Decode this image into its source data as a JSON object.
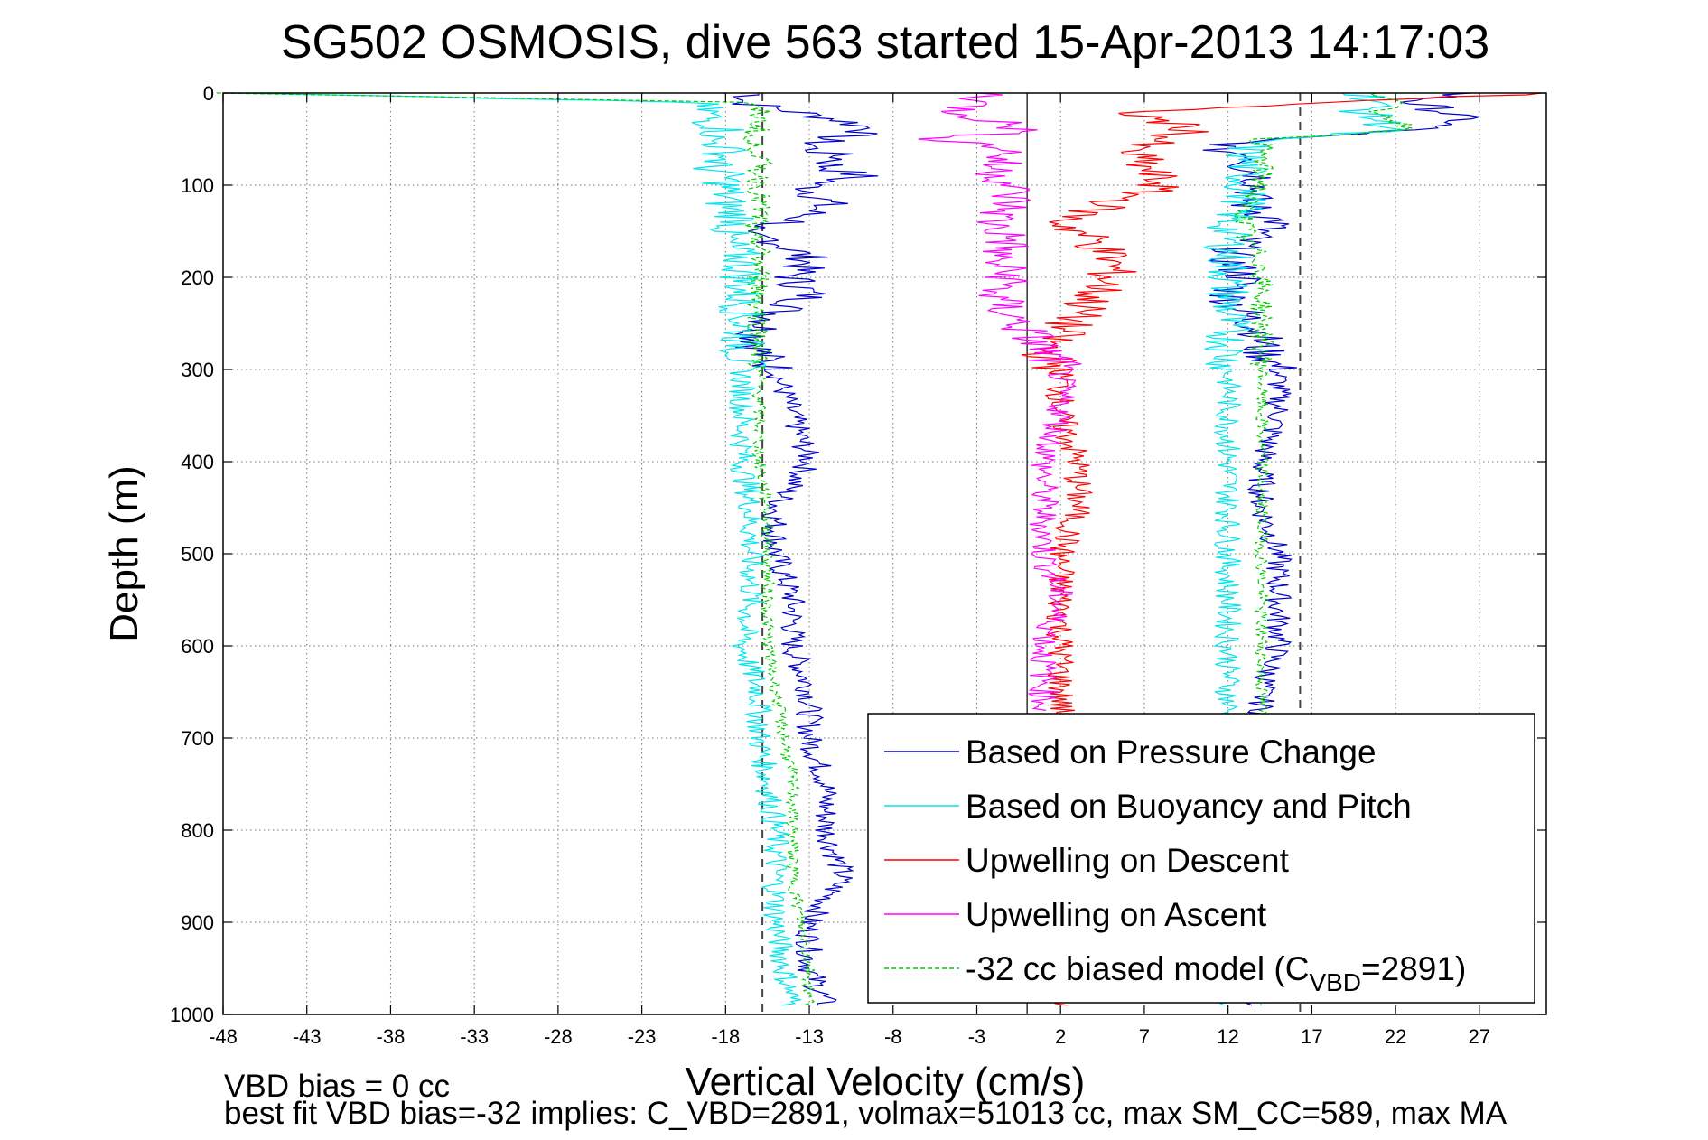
{
  "chart_data": {
    "type": "line",
    "title": "SG502 OSMOSIS, dive 563 started 15-Apr-2013 14:17:03",
    "xlabel": "Vertical Velocity (cm/s)",
    "ylabel": "Depth (m)",
    "xlim": [
      -48,
      31
    ],
    "ylim": [
      0,
      1000
    ],
    "y_reversed": true,
    "grid": true,
    "x_ticks": [
      -48,
      -43,
      -38,
      -33,
      -28,
      -23,
      -18,
      -13,
      -8,
      -3,
      2,
      7,
      12,
      17,
      22,
      27
    ],
    "y_ticks": [
      0,
      100,
      200,
      300,
      400,
      500,
      600,
      700,
      800,
      900,
      1000
    ],
    "legend_position": "bottom-right",
    "reference_lines": {
      "solid_x": [
        0
      ],
      "dashed_x": [
        -15.8,
        16.3
      ]
    },
    "series": [
      {
        "name": "Based on Pressure Change",
        "color": "#0000cc",
        "style": "solid",
        "depth": [
          0,
          10,
          20,
          30,
          40,
          50,
          60,
          70,
          80,
          90,
          100,
          120,
          140,
          150,
          160,
          180,
          200,
          220,
          240,
          260,
          280,
          300,
          350,
          400,
          450,
          500,
          550,
          600,
          650,
          700,
          750,
          800,
          850,
          900,
          950,
          990
        ],
        "descent": [
          -16,
          -17,
          -14,
          -11,
          -9,
          -12,
          -13,
          -11,
          -12,
          -10,
          -13,
          -12,
          -14,
          -18,
          -15,
          -13,
          -14,
          -13,
          -15,
          -16,
          -16,
          -15,
          -14,
          -13,
          -15,
          -15,
          -14,
          -14,
          -13,
          -13,
          -12,
          -12,
          -11,
          -13,
          -13,
          -12
        ],
        "ascent": [
          26,
          23,
          25,
          26,
          23,
          14,
          11,
          14,
          13,
          14,
          14,
          13,
          15,
          14,
          13,
          12,
          13,
          12,
          13,
          14,
          14,
          15,
          15,
          14,
          14,
          15,
          15,
          15,
          14,
          14,
          14,
          14,
          13,
          13,
          13,
          13
        ]
      },
      {
        "name": "Based on Buoyancy and Pitch",
        "color": "#00e5ee",
        "style": "solid",
        "depth": [
          0,
          10,
          20,
          30,
          40,
          50,
          60,
          70,
          80,
          90,
          100,
          120,
          140,
          150,
          160,
          180,
          200,
          220,
          240,
          260,
          280,
          300,
          350,
          400,
          450,
          500,
          550,
          600,
          650,
          700,
          750,
          800,
          850,
          900,
          950,
          990
        ],
        "descent": [
          -48,
          -20,
          -19,
          -19,
          -18,
          -19,
          -18,
          -18,
          -19,
          -18,
          -18,
          -18,
          -17,
          -18,
          -18,
          -17,
          -17,
          -17,
          -17,
          -17,
          -17,
          -17,
          -17,
          -17,
          -16.5,
          -16.5,
          -16.5,
          -17,
          -16,
          -16,
          -15.5,
          -15,
          -15,
          -15,
          -14.5,
          -14
        ],
        "ascent": [
          20,
          21,
          20,
          21,
          22,
          14,
          13,
          13,
          13,
          13,
          13,
          13,
          12,
          12,
          12,
          12,
          12,
          12,
          12,
          12,
          12,
          12,
          12,
          12,
          12,
          12,
          12,
          12,
          12,
          12,
          12,
          12,
          12,
          12,
          12,
          12
        ]
      },
      {
        "name": "Upwelling on Descent",
        "color": "#ff0000",
        "style": "solid",
        "depth": [
          0,
          20,
          40,
          60,
          80,
          100,
          120,
          140,
          160,
          180,
          200,
          220,
          240,
          260,
          280,
          300,
          350,
          400,
          450,
          500,
          550,
          600,
          650,
          990
        ],
        "values": [
          31,
          6,
          10,
          6,
          7,
          8,
          5,
          2,
          4,
          5,
          5,
          4,
          3,
          2,
          1,
          2,
          2,
          3,
          3,
          2,
          2,
          2,
          2,
          2
        ]
      },
      {
        "name": "Upwelling on Ascent",
        "color": "#ff00ff",
        "style": "solid",
        "depth": [
          0,
          20,
          40,
          50,
          60,
          80,
          100,
          120,
          140,
          160,
          180,
          200,
          220,
          240,
          260,
          280,
          300,
          350,
          400,
          450,
          500,
          550,
          600,
          650,
          670
        ],
        "values": [
          -2,
          -4,
          0,
          -5,
          -1,
          -2,
          -1,
          -1,
          -2,
          -1,
          -2,
          -1,
          -2,
          -1,
          0,
          1,
          2,
          2,
          1,
          1,
          1,
          2,
          1,
          1,
          1
        ]
      },
      {
        "name": "-32 cc biased model (C_VBD=2891)",
        "color": "#00cc00",
        "style": "dashed",
        "depth": [
          0,
          10,
          20,
          30,
          40,
          50,
          60,
          70,
          80,
          90,
          100,
          120,
          140,
          150,
          160,
          180,
          200,
          220,
          240,
          260,
          280,
          300,
          350,
          400,
          450,
          500,
          550,
          600,
          650,
          700,
          750,
          800,
          850,
          900,
          950,
          990
        ],
        "descent": [
          -48,
          -17,
          -16,
          -16,
          -16,
          -17,
          -16,
          -16,
          -16,
          -16,
          -16,
          -16,
          -16,
          -17,
          -16,
          -16,
          -16,
          -16,
          -16,
          -16,
          -16,
          -16,
          -16,
          -16,
          -15.5,
          -15.5,
          -15.5,
          -15.5,
          -15,
          -14.5,
          -14,
          -14,
          -14,
          -13.5,
          -13,
          -13
        ],
        "ascent": [
          21,
          22,
          21,
          22,
          23,
          14,
          14,
          14,
          14,
          14,
          14,
          13,
          13,
          13,
          13,
          14,
          14,
          14,
          14,
          14,
          14,
          14,
          14,
          14,
          14,
          14,
          14,
          14,
          14,
          14,
          14,
          14,
          14,
          14,
          14,
          14
        ]
      }
    ],
    "legend_entries": [
      {
        "label": "Based on Pressure Change",
        "color": "#0000cc",
        "dashed": false
      },
      {
        "label": "Based on Buoyancy and Pitch",
        "color": "#00e5ee",
        "dashed": false
      },
      {
        "label": "Upwelling on Descent",
        "color": "#ff0000",
        "dashed": false
      },
      {
        "label": "Upwelling on Ascent",
        "color": "#ff00ff",
        "dashed": false
      },
      {
        "label": "-32 cc biased model (C",
        "sub": "VBD",
        "suffix": "=2891)",
        "color": "#00cc00",
        "dashed": true
      }
    ],
    "annotations": [
      "VBD bias = 0 cc",
      "best fit VBD bias=-32 implies: C_VBD=2891, volmax=51013 cc, max SM_CC=589, max MA"
    ]
  }
}
